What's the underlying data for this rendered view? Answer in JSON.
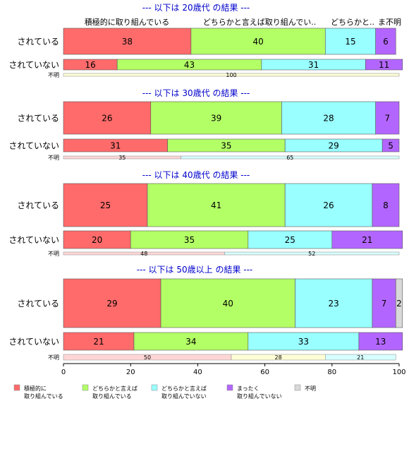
{
  "chart_data": {
    "type": "bar",
    "orientation": "horizontal-stacked",
    "xlim": [
      0,
      100
    ],
    "x_ticks": [
      "0",
      "20",
      "40",
      "60",
      "80",
      "100"
    ],
    "grid": false,
    "legend_position": "bottom",
    "categories": [
      "積極的に取り組んでいる",
      "どちらかと言えば取り組んでいる",
      "どちらかと言えば取り組んでいない",
      "まったく取り組んでいない",
      "不明"
    ],
    "top_labels": [
      "積極的に取り組んでいる",
      "どちらかと言えば取り組んでい..",
      "どちらかと..",
      "ま..",
      "不明"
    ],
    "legend_labels": [
      [
        "積極的に",
        "取り組んでいる"
      ],
      [
        "どちらかと言えば",
        "取り組んでいる"
      ],
      [
        "どちらかと言えば",
        "取り組んでいない"
      ],
      [
        "まったく",
        "取り組んでいない"
      ],
      [
        "不明"
      ]
    ],
    "colors": [
      "#FF6B6B",
      "#B3FF66",
      "#99FFFF",
      "#B366FF",
      "#D9D9D9"
    ],
    "light_colors": [
      "#FFD6D6",
      "#FFFFD6",
      "#D6FFFF",
      "#FFD6FF",
      "#EEEEEE"
    ],
    "panels": [
      {
        "title": "--- 以下は 20歳代 の結果 ---",
        "rows": [
          {
            "label": "されている",
            "values": [
              38,
              40,
              15,
              6,
              0
            ],
            "labels": [
              "38",
              "40",
              "15",
              "6",
              ""
            ]
          },
          {
            "label": "されていない",
            "values": [
              16,
              43,
              31,
              11,
              0
            ],
            "labels": [
              "16",
              "43",
              "31",
              "11",
              ""
            ]
          },
          {
            "label": "不明",
            "values": [
              0,
              100,
              0,
              0,
              0
            ],
            "labels": [
              "",
              "100",
              "",
              "",
              ""
            ]
          }
        ]
      },
      {
        "title": "--- 以下は 30歳代 の結果 ---",
        "rows": [
          {
            "label": "されている",
            "values": [
              26,
              39,
              28,
              7,
              0
            ],
            "labels": [
              "26",
              "39",
              "28",
              "7",
              ""
            ]
          },
          {
            "label": "されていない",
            "values": [
              31,
              35,
              29,
              5,
              0
            ],
            "labels": [
              "31",
              "35",
              "29",
              "5",
              ""
            ]
          },
          {
            "label": "不明",
            "values": [
              35,
              0,
              65,
              0,
              0
            ],
            "labels": [
              "35",
              "",
              "65",
              "",
              ""
            ]
          }
        ]
      },
      {
        "title": "--- 以下は 40歳代 の結果 ---",
        "rows": [
          {
            "label": "されている",
            "values": [
              25,
              41,
              26,
              8,
              0
            ],
            "labels": [
              "25",
              "41",
              "26",
              "8",
              ""
            ]
          },
          {
            "label": "されていない",
            "values": [
              20,
              35,
              25,
              21,
              0
            ],
            "labels": [
              "20",
              "35",
              "25",
              "21",
              ""
            ]
          },
          {
            "label": "不明",
            "values": [
              48,
              0,
              52,
              0,
              0
            ],
            "labels": [
              "48",
              "",
              "52",
              "",
              ""
            ]
          }
        ]
      },
      {
        "title": "--- 以下は 50歳以上 の結果 ---",
        "rows": [
          {
            "label": "されている",
            "values": [
              29,
              40,
              23,
              7,
              2
            ],
            "labels": [
              "29",
              "40",
              "23",
              "7",
              "2"
            ]
          },
          {
            "label": "されていない",
            "values": [
              21,
              34,
              33,
              13,
              0
            ],
            "labels": [
              "21",
              "34",
              "33",
              "13",
              ""
            ]
          },
          {
            "label": "不明",
            "values": [
              50,
              28,
              21,
              0,
              0
            ],
            "labels": [
              "50",
              "28",
              "21",
              "",
              ""
            ]
          }
        ]
      }
    ]
  }
}
